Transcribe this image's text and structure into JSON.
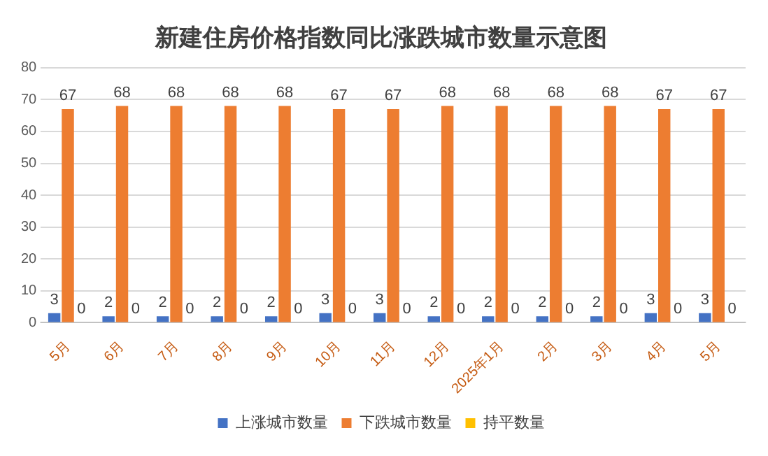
{
  "chart_data": {
    "type": "bar",
    "title": "新建住房价格指数同比涨跌城市数量示意图",
    "categories": [
      "5月",
      "6月",
      "7月",
      "8月",
      "9月",
      "10月",
      "11月",
      "12月",
      "2025年1月",
      "2月",
      "3月",
      "4月",
      "5月"
    ],
    "series": [
      {
        "name": "上涨城市数量",
        "color": "#4472c4",
        "values": [
          3,
          2,
          2,
          2,
          2,
          3,
          3,
          2,
          2,
          2,
          2,
          3,
          3
        ]
      },
      {
        "name": "下跌城市数量",
        "color": "#ed7d31",
        "values": [
          67,
          68,
          68,
          68,
          68,
          67,
          67,
          68,
          68,
          68,
          68,
          67,
          67
        ]
      },
      {
        "name": "持平数量",
        "color": "#ffc000",
        "values": [
          0,
          0,
          0,
          0,
          0,
          0,
          0,
          0,
          0,
          0,
          0,
          0,
          0
        ]
      }
    ],
    "ylim": [
      0,
      80
    ],
    "yticks": [
      0,
      10,
      20,
      30,
      40,
      50,
      60,
      70,
      80
    ],
    "grid": "y",
    "legend": "bottom",
    "data_labels": true
  }
}
